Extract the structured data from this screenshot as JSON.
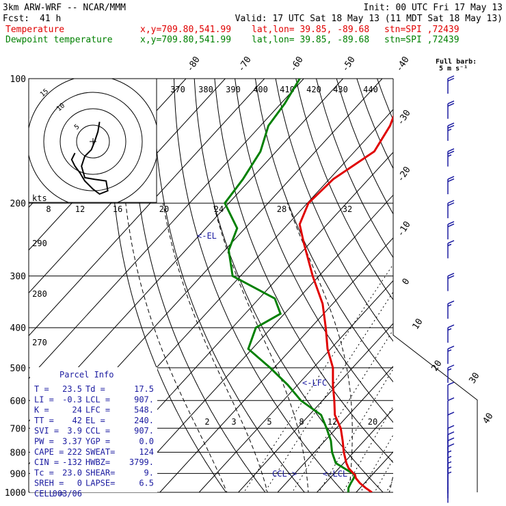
{
  "header": {
    "model": "3km ARW-WRF -- NCAR/MMM",
    "init": "Init: 00 UTC Fri 17 May 13",
    "fcst_label": "Fcst:",
    "fcst_value": "41 h",
    "valid": "Valid: 17 UTC Sat 18 May 13 (11 MDT Sat 18 May 13)",
    "temp_label": "Temperature",
    "dew_label": "Dewpoint temperature",
    "xy": "x,y=709.80,541.99",
    "latlon": "lat,lon= 39.85, -89.68",
    "stn": "stn=SPI ,72439"
  },
  "barb_legend": {
    "line1": "Full barb:",
    "line2": "5 m s⁻¹"
  },
  "hodograph": {
    "kts_label": "kts",
    "ring_labels": [
      "5",
      "10",
      "15"
    ]
  },
  "annotations": {
    "el": "<-EL",
    "lfc": "<-LFC",
    "lcl": "<-LCL",
    "ccl": "CCL->"
  },
  "parcel_info": {
    "title": "Parcel Info",
    "rows": [
      {
        "l": "T  =",
        "v1": "23.5",
        "m": "Td =",
        "v2": "17.5"
      },
      {
        "l": "LI =",
        "v1": "-0.3",
        "m": "LCL =",
        "v2": "907."
      },
      {
        "l": "K  =",
        "v1": "24",
        "m": "LFC =",
        "v2": "548."
      },
      {
        "l": "TT =",
        "v1": "42",
        "m": "EL =",
        "v2": "240."
      },
      {
        "l": "SVI =",
        "v1": "3.9",
        "m": "CCL =",
        "v2": "907."
      },
      {
        "l": "PW =",
        "v1": "3.37",
        "m": "YGP =",
        "v2": "0.0"
      },
      {
        "l": "CAPE =",
        "v1": "222",
        "m": "SWEAT=",
        "v2": "124"
      },
      {
        "l": "CIN =",
        "v1": "-132",
        "m": "HWBZ=",
        "v2": "3799."
      },
      {
        "l": "Tc =",
        "v1": "23.0",
        "m": "SHEAR=",
        "v2": "9."
      },
      {
        "l": "SREH =",
        "v1": "0",
        "m": "LAPSE=",
        "v2": "6.5"
      },
      {
        "l": "CELL =",
        "v1": "003/06",
        "m": "",
        "v2": ""
      }
    ]
  },
  "chart_data": {
    "type": "line",
    "diagram": "skew-T log-p",
    "y_axis": {
      "scale": "log",
      "ylim": [
        1000,
        100
      ],
      "tick_labels": [
        "100",
        "200",
        "300",
        "400",
        "500",
        "600",
        "700",
        "800",
        "900",
        "1000"
      ]
    },
    "isotherm_labels": [
      "-80",
      "-70",
      "-60",
      "-50",
      "-40",
      "-30",
      "-20",
      "-10",
      "0",
      "10",
      "20",
      "30",
      "40"
    ],
    "theta_labels": [
      "370",
      "380",
      "390",
      "400",
      "410",
      "420",
      "430",
      "440"
    ],
    "theta_low_labels": [
      "290",
      "280",
      "270"
    ],
    "mixing_ratio_upper_labels": [
      "8",
      "12",
      "16",
      "20",
      "24",
      "28",
      "32"
    ],
    "mixing_ratio_lower_labels": [
      "2",
      "3",
      "5",
      "8",
      "12",
      "20"
    ],
    "series": [
      {
        "name": "Temperature",
        "color": "#e00000",
        "units": "degC",
        "points": [
          {
            "p": 1000,
            "t": 24.0
          },
          {
            "p": 975,
            "t": 21.3
          },
          {
            "p": 950,
            "t": 18.8
          },
          {
            "p": 925,
            "t": 16.7
          },
          {
            "p": 907,
            "t": 15.6
          },
          {
            "p": 900,
            "t": 14.9
          },
          {
            "p": 875,
            "t": 12.5
          },
          {
            "p": 850,
            "t": 10.7
          },
          {
            "p": 800,
            "t": 7.5
          },
          {
            "p": 750,
            "t": 4.5
          },
          {
            "p": 700,
            "t": 1.1
          },
          {
            "p": 650,
            "t": -3.5
          },
          {
            "p": 600,
            "t": -7.0
          },
          {
            "p": 550,
            "t": -11.0
          },
          {
            "p": 500,
            "t": -15.0
          },
          {
            "p": 450,
            "t": -20.8
          },
          {
            "p": 400,
            "t": -26.2
          },
          {
            "p": 350,
            "t": -32.6
          },
          {
            "p": 300,
            "t": -41.6
          },
          {
            "p": 250,
            "t": -51.5
          },
          {
            "p": 225,
            "t": -57.0
          },
          {
            "p": 200,
            "t": -59.7
          },
          {
            "p": 175,
            "t": -59.0
          },
          {
            "p": 150,
            "t": -55.0
          },
          {
            "p": 130,
            "t": -57.0
          },
          {
            "p": 115,
            "t": -60.0
          },
          {
            "p": 100,
            "t": -64.0
          }
        ]
      },
      {
        "name": "Dewpoint temperature",
        "color": "#008000",
        "units": "degC",
        "points": [
          {
            "p": 1000,
            "t": 18.0
          },
          {
            "p": 975,
            "t": 17.0
          },
          {
            "p": 950,
            "t": 16.5
          },
          {
            "p": 925,
            "t": 16.1
          },
          {
            "p": 907,
            "t": 15.6
          },
          {
            "p": 850,
            "t": 8.0
          },
          {
            "p": 800,
            "t": 4.5
          },
          {
            "p": 750,
            "t": 1.5
          },
          {
            "p": 700,
            "t": -2.5
          },
          {
            "p": 650,
            "t": -7.0
          },
          {
            "p": 600,
            "t": -15.5
          },
          {
            "p": 550,
            "t": -22.5
          },
          {
            "p": 500,
            "t": -31.0
          },
          {
            "p": 450,
            "t": -41.0
          },
          {
            "p": 400,
            "t": -44.0
          },
          {
            "p": 370,
            "t": -41.0
          },
          {
            "p": 340,
            "t": -46.0
          },
          {
            "p": 300,
            "t": -62.0
          },
          {
            "p": 260,
            "t": -69.0
          },
          {
            "p": 230,
            "t": -72.0
          },
          {
            "p": 200,
            "t": -81.0
          },
          {
            "p": 175,
            "t": -82.0
          },
          {
            "p": 150,
            "t": -84.0
          },
          {
            "p": 130,
            "t": -88.0
          },
          {
            "p": 115,
            "t": -89.0
          },
          {
            "p": 100,
            "t": -91.0
          }
        ]
      }
    ],
    "wind_profile_ms": [
      {
        "p": 975,
        "spd": 2
      },
      {
        "p": 950,
        "spd": 2
      },
      {
        "p": 925,
        "spd": 2
      },
      {
        "p": 900,
        "spd": 3
      },
      {
        "p": 875,
        "spd": 3
      },
      {
        "p": 850,
        "spd": 4
      },
      {
        "p": 825,
        "spd": 4
      },
      {
        "p": 800,
        "spd": 4
      },
      {
        "p": 775,
        "spd": 5
      },
      {
        "p": 750,
        "spd": 5
      },
      {
        "p": 725,
        "spd": 5
      },
      {
        "p": 700,
        "spd": 6
      },
      {
        "p": 650,
        "spd": 6
      },
      {
        "p": 600,
        "spd": 7
      },
      {
        "p": 550,
        "spd": 7
      },
      {
        "p": 500,
        "spd": 8
      },
      {
        "p": 450,
        "spd": 8
      },
      {
        "p": 400,
        "spd": 9
      },
      {
        "p": 350,
        "spd": 9
      },
      {
        "p": 300,
        "spd": 10
      },
      {
        "p": 250,
        "spd": 9
      },
      {
        "p": 225,
        "spd": 10
      },
      {
        "p": 200,
        "spd": 11
      },
      {
        "p": 175,
        "spd": 12
      },
      {
        "p": 150,
        "spd": 14
      },
      {
        "p": 130,
        "spd": 13
      },
      {
        "p": 115,
        "spd": 11
      },
      {
        "p": 100,
        "spd": 10
      }
    ],
    "hodograph_kts": [
      {
        "u": 2.0,
        "v": 6.0
      },
      {
        "u": 1.5,
        "v": 3.0
      },
      {
        "u": 0.5,
        "v": 0.0
      },
      {
        "u": -0.5,
        "v": -2.5
      },
      {
        "u": -2.5,
        "v": -4.5
      },
      {
        "u": -3.5,
        "v": -7.5
      },
      {
        "u": -2.5,
        "v": -11.0
      },
      {
        "u": 0.5,
        "v": -11.5
      },
      {
        "u": 4.0,
        "v": -12.0
      },
      {
        "u": 4.5,
        "v": -15.0
      },
      {
        "u": 2.0,
        "v": -16.0
      },
      {
        "u": 0.0,
        "v": -14.5
      },
      {
        "u": -2.5,
        "v": -12.0
      },
      {
        "u": -4.0,
        "v": -9.5
      },
      {
        "u": -5.5,
        "v": -7.5
      },
      {
        "u": -6.5,
        "v": -5.5
      },
      {
        "u": -5.5,
        "v": -3.5
      }
    ]
  }
}
